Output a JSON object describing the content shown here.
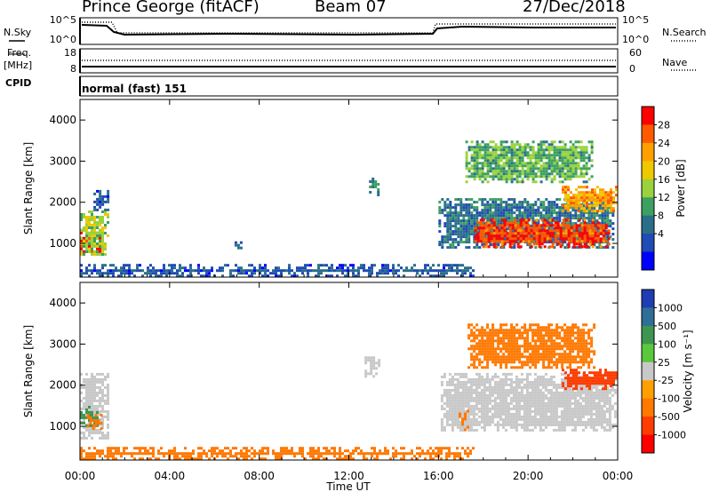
{
  "header": {
    "station": "Prince George (fitACF)",
    "beam": "Beam 07",
    "date": "27/Dec/2018"
  },
  "top_panels": {
    "nsky_label": "N.Sky",
    "nsearch_label": "N.Search",
    "freq_label": "Freq.",
    "freq_unit": "[MHz]",
    "cpid_label": "CPID",
    "nave_label": "Nave",
    "cpid_text": "normal (fast) 151",
    "nsky_ticks": [
      "10^5",
      "10^0"
    ],
    "nsearch_ticks": [
      "10^5",
      "10^0"
    ],
    "freq_ticks": [
      "18",
      "8"
    ],
    "nave_ticks": [
      "60",
      "0"
    ]
  },
  "colorbars": {
    "power": {
      "title": "Power [dB]",
      "ticks": [
        "28",
        "24",
        "20",
        "16",
        "12",
        "8",
        "4"
      ],
      "colors": [
        "#ff0000",
        "#ff5a00",
        "#ffa000",
        "#f0c800",
        "#9ad23c",
        "#3ca060",
        "#2a6e8a",
        "#1e4bb4",
        "#0000ff"
      ]
    },
    "velocity": {
      "title": "Velocity [m s⁻¹]",
      "ticks": [
        "1000",
        "500",
        "100",
        "25",
        "-25",
        "-100",
        "-500",
        "-1000"
      ],
      "colors": [
        "#1e3cb4",
        "#2f6e96",
        "#3c9650",
        "#5ac83c",
        "#c8c8c8",
        "#ffa000",
        "#ff7800",
        "#ff3c00",
        "#ff0000"
      ]
    }
  },
  "chart_data": [
    {
      "type": "heatmap",
      "name": "Power",
      "xlabel": "",
      "ylabel": "Slant Range [km]",
      "xlim": [
        0,
        24
      ],
      "ylim": [
        180,
        4500
      ],
      "yticks": [
        1000,
        2000,
        3000,
        4000
      ],
      "ytick_labels": [
        "1000",
        "2000",
        "3000",
        "4000"
      ],
      "xticks": [
        0,
        4,
        8,
        12,
        16,
        20,
        24
      ],
      "colorbar_title": "Power [dB]",
      "colorbar_ticks": [
        28,
        24,
        20,
        16,
        12,
        8,
        4
      ],
      "regions": [
        {
          "t0": 0.0,
          "t1": 0.9,
          "r0": 800,
          "r1": 1350,
          "value": 28
        },
        {
          "t0": 0.0,
          "t1": 1.2,
          "r0": 700,
          "r1": 1800,
          "value": 16
        },
        {
          "t0": 0.6,
          "t1": 1.3,
          "r0": 1800,
          "r1": 2300,
          "value": 8
        },
        {
          "t0": 6.9,
          "t1": 7.2,
          "r0": 900,
          "r1": 1050,
          "value": 8
        },
        {
          "t0": 12.9,
          "t1": 13.3,
          "r0": 2200,
          "r1": 2600,
          "value": 12
        },
        {
          "t0": 16.0,
          "t1": 23.8,
          "r0": 900,
          "r1": 2100,
          "value": 10
        },
        {
          "t0": 17.6,
          "t1": 23.6,
          "r0": 900,
          "r1": 1600,
          "value": 26
        },
        {
          "t0": 21.5,
          "t1": 23.9,
          "r0": 1800,
          "r1": 2400,
          "value": 22
        },
        {
          "t0": 17.2,
          "t1": 22.9,
          "r0": 2500,
          "r1": 3500,
          "value": 14
        },
        {
          "t0": 0.0,
          "t1": 17.5,
          "r0": 180,
          "r1": 500,
          "value": 8
        }
      ]
    },
    {
      "type": "heatmap",
      "name": "Velocity",
      "xlabel": "Time UT",
      "ylabel": "Slant Range [km]",
      "xlim": [
        0,
        24
      ],
      "ylim": [
        180,
        4500
      ],
      "yticks": [
        1000,
        2000,
        3000,
        4000
      ],
      "ytick_labels": [
        "1000",
        "2000",
        "3000",
        "4000"
      ],
      "xticks": [
        0,
        4,
        8,
        12,
        16,
        20,
        24
      ],
      "xtick_labels": [
        "00:00",
        "04:00",
        "08:00",
        "12:00",
        "16:00",
        "20:00",
        "00:00"
      ],
      "colorbar_title": "Velocity [m s⁻¹]",
      "colorbar_ticks": [
        1000,
        500,
        100,
        25,
        -25,
        -100,
        -500,
        -1000
      ],
      "regions": [
        {
          "t0": 0.0,
          "t1": 1.3,
          "r0": 700,
          "r1": 2300,
          "value": 0
        },
        {
          "t0": 0.0,
          "t1": 0.8,
          "r0": 1000,
          "r1": 1500,
          "value": 150
        },
        {
          "t0": 0.3,
          "t1": 1.0,
          "r0": 850,
          "r1": 1300,
          "value": -150
        },
        {
          "t0": 12.7,
          "t1": 13.4,
          "r0": 2200,
          "r1": 2700,
          "value": 0
        },
        {
          "t0": 16.1,
          "t1": 23.9,
          "r0": 900,
          "r1": 2300,
          "value": 0
        },
        {
          "t0": 16.9,
          "t1": 17.3,
          "r0": 900,
          "r1": 1400,
          "value": -150
        },
        {
          "t0": 21.5,
          "t1": 23.9,
          "r0": 1900,
          "r1": 2400,
          "value": -600
        },
        {
          "t0": 17.3,
          "t1": 22.9,
          "r0": 2400,
          "r1": 3500,
          "value": -150
        },
        {
          "t0": 0.0,
          "t1": 17.5,
          "r0": 180,
          "r1": 500,
          "value": -150
        }
      ]
    }
  ]
}
